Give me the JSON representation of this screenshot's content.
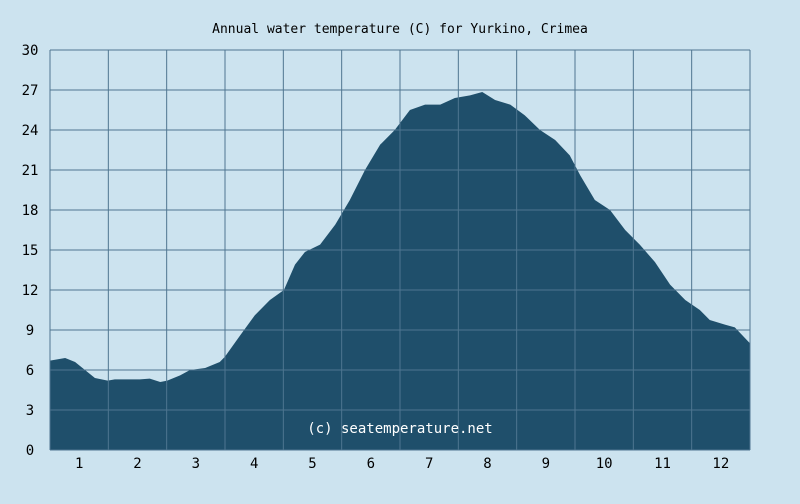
{
  "chart_data": {
    "type": "area",
    "title": "Annual water temperature (C) for Yurkino, Crimea",
    "watermark": "(c) seatemperature.net",
    "xlabel": "",
    "ylabel": "",
    "x_ticks": [
      "1",
      "2",
      "3",
      "4",
      "5",
      "6",
      "7",
      "8",
      "9",
      "10",
      "11",
      "12"
    ],
    "y_ticks": [
      "0",
      "3",
      "6",
      "9",
      "12",
      "15",
      "18",
      "21",
      "24",
      "27",
      "30"
    ],
    "xlim": [
      0.5,
      12.5
    ],
    "ylim": [
      0,
      30
    ],
    "grid": true,
    "colors": {
      "background": "#cce3ef",
      "fill": "#1f4f6b",
      "grid": "#4f7690"
    },
    "x": [
      0.5,
      0.76,
      0.93,
      1.1,
      1.27,
      1.49,
      1.61,
      2.04,
      2.21,
      2.39,
      2.51,
      2.73,
      2.9,
      3.16,
      3.41,
      3.5,
      3.76,
      4.01,
      4.27,
      4.51,
      4.7,
      4.87,
      5.13,
      5.39,
      5.64,
      5.9,
      6.16,
      6.41,
      6.67,
      6.93,
      7.19,
      7.44,
      7.7,
      7.91,
      8.13,
      8.39,
      8.64,
      8.9,
      9.16,
      9.41,
      9.59,
      9.84,
      10.1,
      10.36,
      10.61,
      10.87,
      11.13,
      11.39,
      11.64,
      11.81,
      12.07,
      12.24,
      12.5
    ],
    "values": [
      6.7,
      6.9,
      6.6,
      6.0,
      5.4,
      5.2,
      5.3,
      5.3,
      5.35,
      5.1,
      5.2,
      5.6,
      6.0,
      6.15,
      6.6,
      7.0,
      8.6,
      10.1,
      11.25,
      12.0,
      13.9,
      14.85,
      15.4,
      16.9,
      18.75,
      21.0,
      22.9,
      24.0,
      25.5,
      25.9,
      25.9,
      26.4,
      26.6,
      26.85,
      26.25,
      25.9,
      25.1,
      24.0,
      23.25,
      22.1,
      20.6,
      18.75,
      18.0,
      16.5,
      15.4,
      14.1,
      12.4,
      11.25,
      10.5,
      9.75,
      9.4,
      9.2,
      8.0
    ]
  }
}
